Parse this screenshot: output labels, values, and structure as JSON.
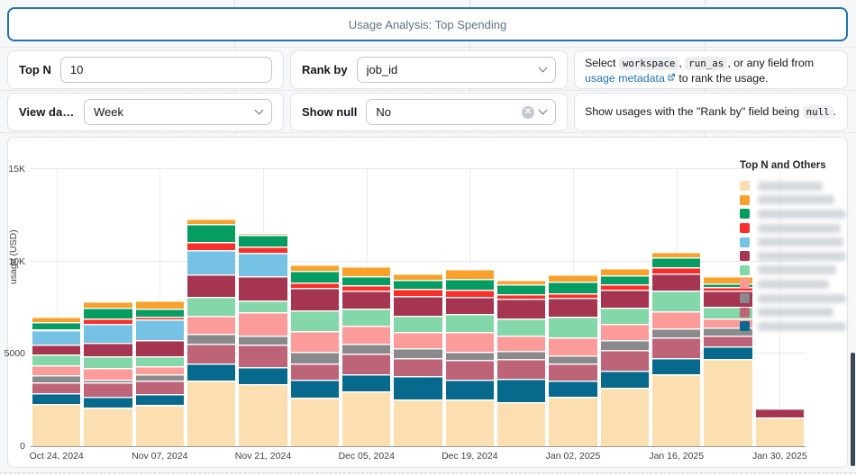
{
  "title_bar": {
    "title": "Usage Analysis: Top Spending"
  },
  "filters": {
    "top_n": {
      "label": "Top N",
      "value": "10"
    },
    "rank_by": {
      "label": "Rank by",
      "value": "job_id"
    },
    "view_data_as": {
      "label": "View dat...",
      "value": "Week"
    },
    "show_null": {
      "label": "Show null",
      "value": "No"
    }
  },
  "help": {
    "rank": {
      "prefix": "Select ",
      "code1": "workspace",
      "sep1": ", ",
      "code2": "run_as",
      "mid": ", or any field from ",
      "link1": "usage",
      "link2": "metadata",
      "suffix": " to rank the usage."
    },
    "null": {
      "prefix": "Show usages with the \"Rank by\" field being ",
      "code": "null",
      "suffix": "."
    }
  },
  "chart_data": {
    "type": "bar",
    "stacked": true,
    "title": "",
    "xlabel": "",
    "ylabel": "usage (USD)",
    "ylim": [
      0,
      15000
    ],
    "grid": true,
    "y_ticks": [
      {
        "value": 0,
        "label": "0"
      },
      {
        "value": 5000,
        "label": "5000"
      },
      {
        "value": 10000,
        "label": "10K"
      },
      {
        "value": 15000,
        "label": "15K"
      }
    ],
    "num_bars": 15,
    "x_ticks": [
      {
        "bar_index": 0,
        "label": "Oct 24, 2024"
      },
      {
        "bar_index": 2,
        "label": "Nov 07, 2024"
      },
      {
        "bar_index": 4,
        "label": "Nov 21, 2024"
      },
      {
        "bar_index": 6,
        "label": "Dec 05, 2024"
      },
      {
        "bar_index": 8,
        "label": "Dec 19, 2024"
      },
      {
        "bar_index": 10,
        "label": "Jan 02, 2025"
      },
      {
        "bar_index": 12,
        "label": "Jan 16, 2025"
      },
      {
        "bar_index": 14,
        "label": "Jan 30, 2025"
      }
    ],
    "series_note": "series listed bottom-to-top of stack; legend labels are blurred/redacted in source image",
    "series": [
      {
        "name": "redacted-cream",
        "color": "#fbdfb0",
        "values": [
          2300,
          2100,
          2250,
          3550,
          3350,
          2650,
          2950,
          2550,
          2550,
          2400,
          2700,
          3150,
          3900,
          4750,
          1550
        ]
      },
      {
        "name": "redacted-teal",
        "color": "#07698c",
        "values": [
          580,
          560,
          600,
          950,
          960,
          950,
          960,
          1250,
          1050,
          1250,
          880,
          950,
          880,
          640,
          0
        ]
      },
      {
        "name": "redacted-mauve",
        "color": "#bd6478",
        "values": [
          560,
          800,
          700,
          1050,
          1200,
          880,
          1100,
          950,
          1050,
          1050,
          880,
          1100,
          1100,
          620,
          0
        ]
      },
      {
        "name": "redacted-gray",
        "color": "#8a8a8c",
        "values": [
          400,
          150,
          350,
          550,
          480,
          640,
          560,
          560,
          480,
          480,
          480,
          550,
          480,
          430,
          0
        ]
      },
      {
        "name": "redacted-pink",
        "color": "#fc9c9a",
        "values": [
          560,
          640,
          450,
          950,
          1280,
          1120,
          950,
          880,
          1050,
          800,
          950,
          880,
          950,
          480,
          0
        ]
      },
      {
        "name": "redacted-lightgreen",
        "color": "#83d7a9",
        "values": [
          560,
          640,
          500,
          1050,
          640,
          1120,
          950,
          880,
          950,
          950,
          1100,
          880,
          1100,
          640,
          0
        ]
      },
      {
        "name": "redacted-maroon",
        "color": "#a53550",
        "values": [
          560,
          720,
          900,
          1200,
          1280,
          1200,
          950,
          1050,
          950,
          1050,
          1050,
          950,
          950,
          880,
          480
        ]
      },
      {
        "name": "redacted-lightblue",
        "color": "#75c2e4",
        "values": [
          750,
          1000,
          1100,
          1300,
          1280,
          0,
          0,
          0,
          0,
          0,
          0,
          0,
          0,
          0,
          0
        ]
      },
      {
        "name": "redacted-red",
        "color": "#f9302a",
        "values": [
          60,
          320,
          150,
          450,
          320,
          320,
          320,
          400,
          400,
          240,
          240,
          320,
          320,
          210,
          0
        ]
      },
      {
        "name": "redacted-green",
        "color": "#059d62",
        "values": [
          380,
          560,
          450,
          1000,
          640,
          640,
          480,
          480,
          560,
          560,
          640,
          480,
          560,
          190,
          0
        ]
      },
      {
        "name": "redacted-orange",
        "color": "#f9a12b",
        "values": [
          320,
          350,
          450,
          270,
          110,
          320,
          510,
          320,
          560,
          240,
          400,
          400,
          270,
          365,
          0
        ]
      }
    ],
    "legend": {
      "title": "Top N and Others",
      "position": "right",
      "labels_redacted": true,
      "display_order": [
        0,
        10,
        9,
        8,
        7,
        6,
        5,
        4,
        3,
        2,
        1
      ],
      "redacted_label_widths": [
        88,
        104,
        138,
        112,
        116,
        132,
        106,
        96,
        122,
        102,
        124
      ]
    }
  }
}
